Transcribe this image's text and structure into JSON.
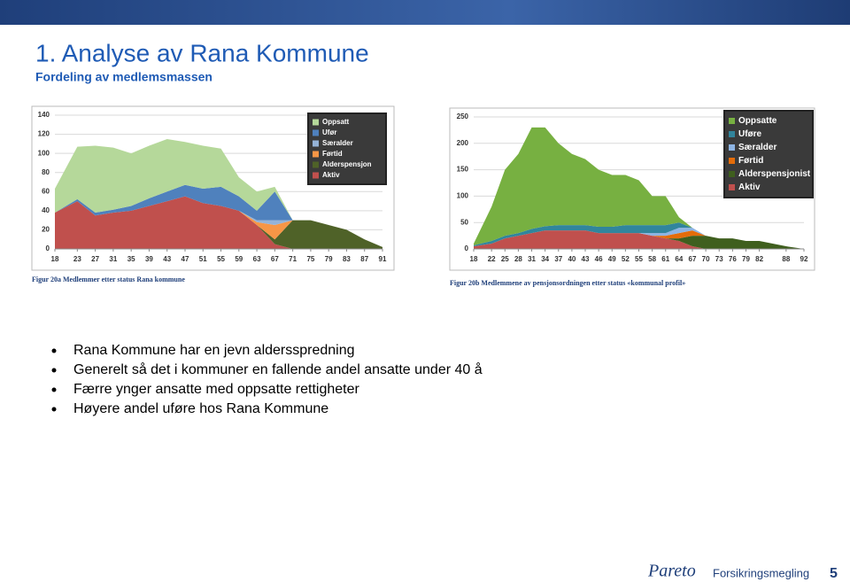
{
  "slide": {
    "title": "1. Analyse av Rana Kommune",
    "subtitle": "Fordeling av medlemsmassen",
    "bullets": [
      "Rana Kommune har en jevn aldersspredning",
      "Generelt så det i kommuner en fallende andel ansatte under 40 å",
      "Færre ynger ansatte med oppsatte rettigheter",
      "Høyere andel uføre hos Rana Kommune"
    ],
    "footer": {
      "logo": "Pareto",
      "logo_sub": "Forsikringsmegling",
      "page": "5"
    }
  },
  "chart_data": [
    {
      "type": "stacked-area",
      "caption": "Figur 20a Medlemmer etter status Rana kommune",
      "x": [
        18,
        23,
        27,
        31,
        35,
        39,
        43,
        47,
        51,
        55,
        59,
        63,
        67,
        71,
        75,
        79,
        83,
        87,
        91
      ],
      "xlim": [
        18,
        91
      ],
      "xticks": [
        18,
        23,
        27,
        31,
        35,
        39,
        43,
        47,
        51,
        55,
        59,
        63,
        67,
        71,
        75,
        79,
        83,
        87,
        91
      ],
      "ylim": [
        0,
        140
      ],
      "yticks": [
        0,
        20,
        40,
        60,
        80,
        100,
        120,
        140
      ],
      "grid": true,
      "legend": "upper right",
      "series": [
        {
          "name": "Oppsatt",
          "color": "#b5d89a",
          "values": [
            25,
            55,
            70,
            65,
            55,
            55,
            55,
            45,
            45,
            40,
            20,
            20,
            5,
            0,
            0,
            0,
            0,
            0,
            0
          ]
        },
        {
          "name": "Ufør",
          "color": "#4f81bd",
          "values": [
            0,
            2,
            3,
            3,
            5,
            8,
            10,
            12,
            15,
            20,
            15,
            10,
            30,
            0,
            0,
            0,
            0,
            0,
            0
          ]
        },
        {
          "name": "Særalder",
          "color": "#95b3d7",
          "values": [
            0,
            0,
            0,
            0,
            0,
            0,
            0,
            0,
            0,
            0,
            0,
            2,
            5,
            0,
            0,
            0,
            0,
            0,
            0
          ]
        },
        {
          "name": "Førtid",
          "color": "#f79646",
          "values": [
            0,
            0,
            0,
            0,
            0,
            0,
            0,
            0,
            0,
            0,
            0,
            3,
            15,
            0,
            0,
            0,
            0,
            0,
            0
          ]
        },
        {
          "name": "Alderspensjon",
          "color": "#4f6228",
          "values": [
            0,
            0,
            0,
            0,
            0,
            0,
            0,
            0,
            0,
            0,
            0,
            0,
            5,
            30,
            30,
            25,
            20,
            10,
            2
          ]
        },
        {
          "name": "Aktiv",
          "color": "#c0504d",
          "values": [
            38,
            50,
            35,
            38,
            40,
            45,
            50,
            55,
            48,
            45,
            40,
            25,
            5,
            0,
            0,
            0,
            0,
            0,
            0
          ]
        }
      ]
    },
    {
      "type": "stacked-area",
      "caption": "Figur 20b Medlemmene av pensjonsordningen etter status «kommunal profil»",
      "x": [
        18,
        22,
        25,
        28,
        31,
        34,
        37,
        40,
        43,
        46,
        49,
        52,
        55,
        58,
        61,
        64,
        67,
        70,
        73,
        76,
        79,
        82,
        88,
        92
      ],
      "xlim": [
        18,
        92
      ],
      "xticks": [
        18,
        22,
        25,
        28,
        31,
        34,
        37,
        40,
        43,
        46,
        49,
        52,
        55,
        58,
        61,
        64,
        67,
        70,
        73,
        76,
        79,
        82,
        88,
        92
      ],
      "ylim": [
        0,
        250
      ],
      "yticks": [
        0,
        50,
        100,
        150,
        200,
        250
      ],
      "grid": true,
      "legend": "upper right",
      "series": [
        {
          "name": "Oppsatte",
          "color": "#77b041",
          "values": [
            3,
            65,
            125,
            150,
            192,
            187,
            155,
            135,
            125,
            108,
            98,
            95,
            85,
            55,
            55,
            10,
            0,
            0,
            0,
            0,
            0,
            0,
            0,
            0
          ]
        },
        {
          "name": "Uføre",
          "color": "#31859c",
          "values": [
            2,
            5,
            5,
            5,
            8,
            8,
            10,
            10,
            10,
            12,
            12,
            15,
            15,
            15,
            15,
            10,
            0,
            0,
            0,
            0,
            0,
            0,
            0,
            0
          ]
        },
        {
          "name": "Særalder",
          "color": "#8eb4e3",
          "values": [
            0,
            0,
            0,
            0,
            0,
            0,
            0,
            0,
            0,
            0,
            0,
            0,
            0,
            5,
            5,
            10,
            5,
            0,
            0,
            0,
            0,
            0,
            0,
            0
          ]
        },
        {
          "name": "Førtid",
          "color": "#e46c0a",
          "values": [
            0,
            0,
            0,
            0,
            0,
            0,
            0,
            0,
            0,
            0,
            0,
            0,
            0,
            0,
            5,
            10,
            10,
            0,
            0,
            0,
            0,
            0,
            0,
            0
          ]
        },
        {
          "name": "Alderspensjonist",
          "color": "#3f5f1e",
          "values": [
            0,
            0,
            0,
            0,
            0,
            0,
            0,
            0,
            0,
            0,
            0,
            0,
            0,
            0,
            0,
            5,
            20,
            25,
            20,
            20,
            15,
            15,
            5,
            0
          ]
        },
        {
          "name": "Aktiv",
          "color": "#c0504d",
          "values": [
            5,
            10,
            20,
            25,
            30,
            35,
            35,
            35,
            35,
            30,
            30,
            30,
            30,
            25,
            20,
            15,
            5,
            0,
            0,
            0,
            0,
            0,
            0,
            0
          ]
        }
      ]
    }
  ]
}
